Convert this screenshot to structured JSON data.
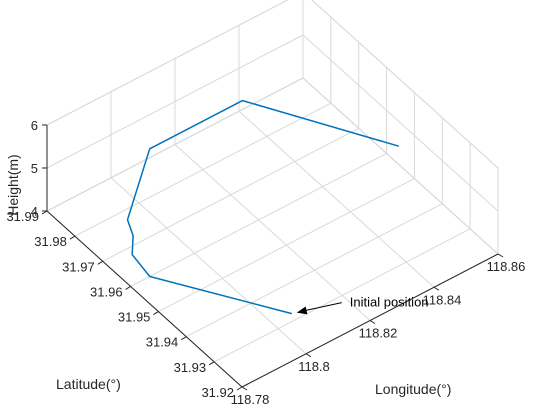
{
  "chart_data": {
    "type": "line3d",
    "xlabel": "Longitude(°)",
    "ylabel": "Latitude(°)",
    "zlabel": "Height(m)",
    "xlim": [
      118.78,
      118.86
    ],
    "ylim": [
      31.92,
      31.99
    ],
    "zlim": [
      4,
      6
    ],
    "xticks": [
      118.78,
      118.8,
      118.82,
      118.84,
      118.86
    ],
    "yticks": [
      31.92,
      31.93,
      31.94,
      31.95,
      31.96,
      31.97,
      31.98,
      31.99
    ],
    "zticks": [
      4,
      5,
      6
    ],
    "grid": true,
    "series": [
      {
        "color": "#0072BD",
        "points": [
          [
            118.806,
            31.932,
            4.0
          ],
          [
            118.786,
            31.96,
            4.0
          ],
          [
            118.784,
            31.964,
            4.35
          ],
          [
            118.786,
            31.966,
            4.6
          ],
          [
            118.786,
            31.968,
            4.85
          ],
          [
            118.806,
            31.983,
            4.85
          ],
          [
            118.835,
            31.983,
            4.85
          ],
          [
            118.856,
            31.951,
            4.85
          ]
        ]
      }
    ],
    "annotations": [
      {
        "text": "Initial position",
        "x": 118.806,
        "y": 31.932,
        "z": 4.0
      }
    ]
  }
}
